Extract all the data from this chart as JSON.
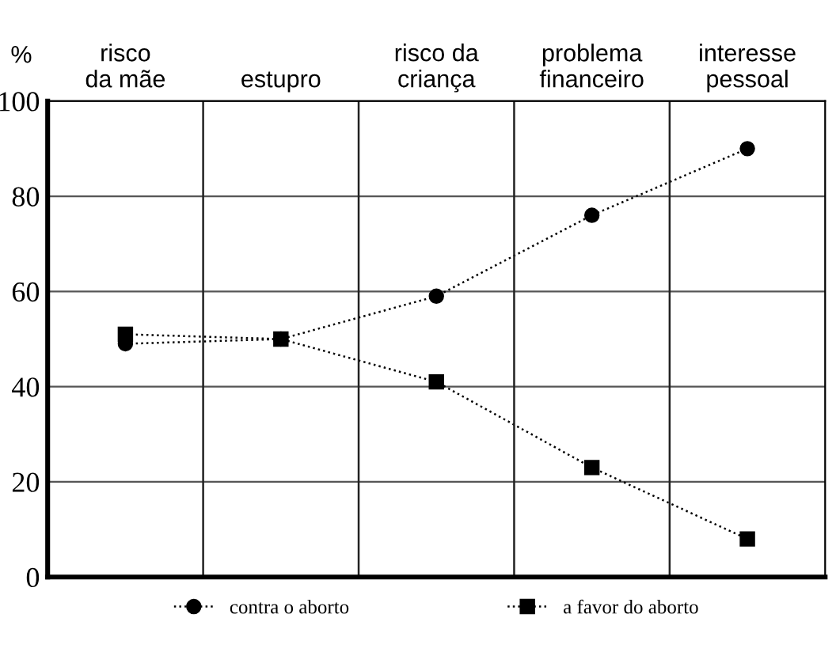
{
  "chart_data": {
    "type": "line",
    "ylabel": "%",
    "categories": [
      "risco\nda mãe",
      "estupro",
      "risco da\ncriança",
      "problema\nfinanceiro",
      "interesse\npessoal"
    ],
    "series": [
      {
        "name": "contra o aborto",
        "color": "#000000",
        "values": [
          49,
          50,
          59,
          76,
          90
        ],
        "marker": "circle"
      },
      {
        "name": "a favor do aborto",
        "color": "#000000",
        "values": [
          51,
          50,
          41,
          23,
          8
        ],
        "marker": "square"
      }
    ],
    "ylim": [
      0,
      100
    ],
    "yticks": [
      0,
      20,
      40,
      60,
      80,
      100
    ],
    "grid": true,
    "legend": "bottom",
    "line_style": "dotted"
  }
}
